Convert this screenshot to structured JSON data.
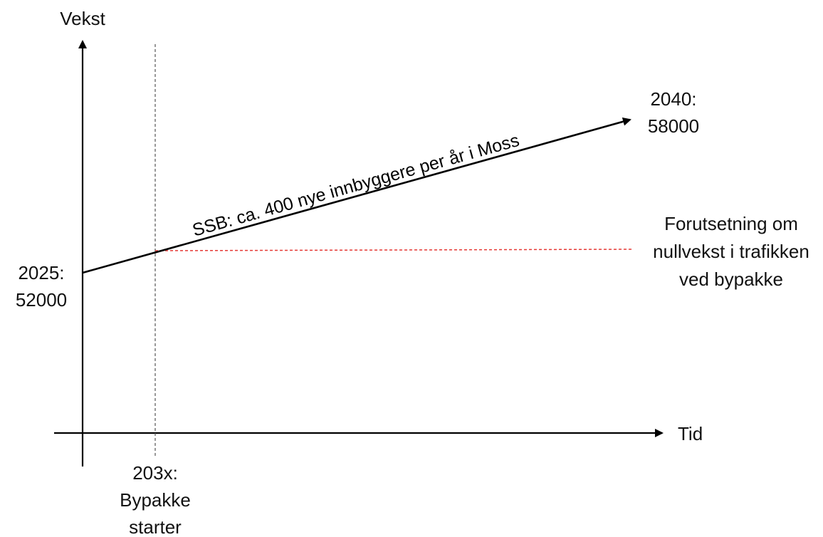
{
  "axes": {
    "y_label": "Vekst",
    "x_label": "Tid"
  },
  "start_point": {
    "line1": "2025:",
    "line2": "52000"
  },
  "end_point": {
    "line1": "2040:",
    "line2": "58000"
  },
  "marker": {
    "line1": "203x:",
    "line2": "Bypakke",
    "line3": "starter"
  },
  "growth_line": {
    "label": "SSB: ca. 400 nye innbyggere per år i Moss"
  },
  "assumption": {
    "line1": "Forutsetning om",
    "line2": "nullvekst i trafikken",
    "line3": "ved bypakke",
    "color": "#e53935"
  }
}
